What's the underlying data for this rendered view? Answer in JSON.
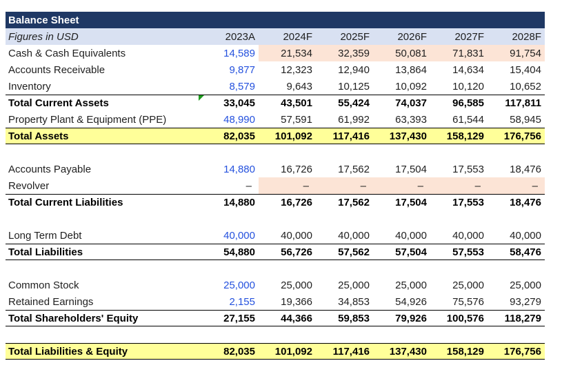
{
  "sheet": {
    "title": "Balance Sheet",
    "subtitle": "Figures in USD",
    "columns": [
      "2023A",
      "2024F",
      "2025F",
      "2026F",
      "2027F",
      "2028F"
    ]
  },
  "colors": {
    "header_bg": "#1F3864",
    "header_text": "#FFFFFF",
    "subheader_bg": "#D9E1F2",
    "forecast_bg": "#FCE4D6",
    "total_bg": "#FFFF99",
    "input_blue": "#2451DE",
    "flag_green": "#1E9C1E",
    "border_black": "#000000"
  },
  "icons": {
    "cell_flag": "green-error-indicator-triangle"
  },
  "rows": [
    {
      "label": "Cash & Cash Equivalents",
      "values": [
        "14,589",
        "21,534",
        "32,359",
        "50,081",
        "71,831",
        "91,754"
      ],
      "input_first": true,
      "peach": true
    },
    {
      "label": "Accounts Receivable",
      "values": [
        "9,877",
        "12,323",
        "12,940",
        "13,864",
        "14,634",
        "15,404"
      ],
      "input_first": true
    },
    {
      "label": "Inventory",
      "values": [
        "8,579",
        "9,643",
        "10,125",
        "10,092",
        "10,120",
        "10,652"
      ],
      "input_first": true
    },
    {
      "label": "Total Current Assets",
      "values": [
        "33,045",
        "43,501",
        "55,424",
        "74,037",
        "96,585",
        "117,811"
      ],
      "bold": true,
      "border_top": true,
      "marker": true
    },
    {
      "label": "Property Plant & Equipment (PPE)",
      "values": [
        "48,990",
        "57,591",
        "61,992",
        "63,393",
        "61,544",
        "58,945"
      ],
      "input_first": true
    },
    {
      "label": "Total Assets",
      "values": [
        "82,035",
        "101,092",
        "117,416",
        "137,430",
        "158,129",
        "176,756"
      ],
      "bold": true,
      "yellow": true,
      "border_top": true,
      "border_bottom": true
    },
    {
      "blank": true,
      "label": "",
      "values": [
        "",
        "",
        "",
        "",
        "",
        ""
      ]
    },
    {
      "label": "Accounts Payable",
      "values": [
        "14,880",
        "16,726",
        "17,562",
        "17,504",
        "17,553",
        "18,476"
      ],
      "input_first": true
    },
    {
      "label": "Revolver",
      "values": [
        "–",
        "–",
        "–",
        "–",
        "–",
        "–"
      ],
      "peach": true,
      "dash": true
    },
    {
      "label": "Total Current Liabilities",
      "values": [
        "14,880",
        "16,726",
        "17,562",
        "17,504",
        "17,553",
        "18,476"
      ],
      "bold": true,
      "border_top": true
    },
    {
      "blank": true,
      "label": "",
      "values": [
        "",
        "",
        "",
        "",
        "",
        ""
      ]
    },
    {
      "label": "Long Term Debt",
      "values": [
        "40,000",
        "40,000",
        "40,000",
        "40,000",
        "40,000",
        "40,000"
      ],
      "input_first": true
    },
    {
      "label": "Total Liabilities",
      "values": [
        "54,880",
        "56,726",
        "57,562",
        "57,504",
        "57,553",
        "58,476"
      ],
      "bold": true,
      "border_top": true,
      "border_bottom": true
    },
    {
      "blank": true,
      "label": "",
      "values": [
        "",
        "",
        "",
        "",
        "",
        ""
      ]
    },
    {
      "label": "Common Stock",
      "values": [
        "25,000",
        "25,000",
        "25,000",
        "25,000",
        "25,000",
        "25,000"
      ],
      "input_first": true
    },
    {
      "label": "Retained Earnings",
      "values": [
        "2,155",
        "19,366",
        "34,853",
        "54,926",
        "75,576",
        "93,279"
      ],
      "input_first": true
    },
    {
      "label": "Total Shareholders' Equity",
      "values": [
        "27,155",
        "44,366",
        "59,853",
        "79,926",
        "100,576",
        "118,279"
      ],
      "bold": true,
      "border_top": true,
      "border_bottom": true
    },
    {
      "blank": true,
      "label": "",
      "values": [
        "",
        "",
        "",
        "",
        "",
        ""
      ]
    },
    {
      "label": "Total Liabilities & Equity",
      "values": [
        "82,035",
        "101,092",
        "117,416",
        "137,430",
        "158,129",
        "176,756"
      ],
      "bold": true,
      "yellow": true,
      "border_top": true,
      "border_bottom": true
    }
  ]
}
